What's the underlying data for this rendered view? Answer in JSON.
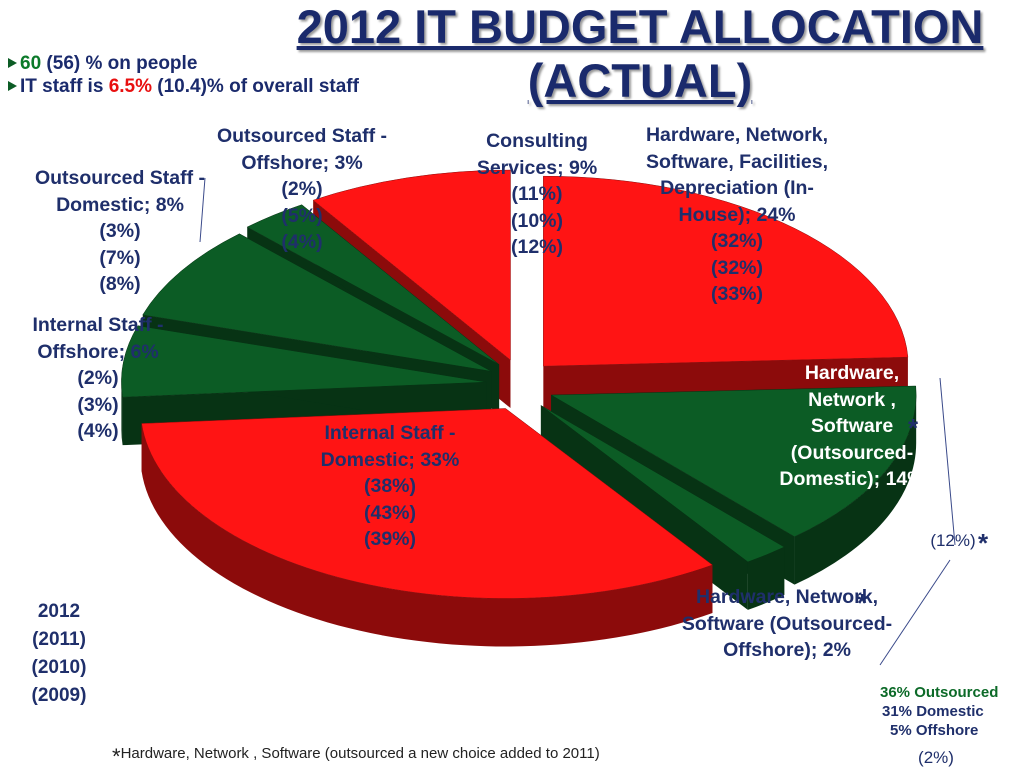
{
  "chart_data": {
    "type": "pie",
    "title": "2012 IT BUDGET ALLOCATION (ACTUAL)",
    "colors": [
      "#ff1414",
      "#ff1414",
      "#0c5c25",
      "#0c5c25",
      "#ff1414",
      "#0c5c25",
      "#0c5c25",
      "#0c5c25"
    ],
    "series": [
      {
        "name": "2012",
        "values": [
          9,
          24,
          14,
          2,
          33,
          6,
          8,
          3
        ],
        "value_labels": [
          "Consulting Services; 9%",
          "Hardware, Network, Software, Facilities, Depreciation (In-House); 24%",
          "Hardware, Network , Software (Outsourced-Domestic); 14%",
          "Hardware, Network, Software (Outsourced-Offshore); 2%",
          "Internal Staff - Domestic; 33%",
          "Internal Staff - Offshore; 6%",
          "Outsourced Staff - Domestic; 8%",
          "Outsourced Staff - Offshore; 3%"
        ]
      },
      {
        "name": "(2011)",
        "values": [
          11,
          32,
          12,
          2,
          38,
          2,
          3,
          2
        ],
        "value_labels": [
          "(11%)",
          "(32%)",
          "(12%)",
          "(2%)",
          "(38%)",
          "(2%)",
          "(3%)",
          "(2%)"
        ]
      },
      {
        "name": "(2010)",
        "values": [
          10,
          32,
          null,
          null,
          43,
          3,
          7,
          5
        ],
        "value_labels": [
          "(10%)",
          "(32%)",
          null,
          null,
          "(43%)",
          "(3%)",
          "(7%)",
          "(5%)"
        ]
      },
      {
        "name": "(2009)",
        "values": [
          12,
          33,
          null,
          null,
          39,
          4,
          8,
          4
        ],
        "value_labels": [
          "(12%)",
          "(33%)",
          null,
          null,
          "(39%)",
          "(4%)",
          "(8%)",
          "(4%)"
        ]
      }
    ],
    "notes": [
      {
        "highlight": "60",
        "text": " (56) % on people"
      },
      {
        "text": "IT staff is ",
        "highlight": "6.5%",
        "rest": " (10.4)% of overall staff"
      }
    ],
    "footnote_marker": "*",
    "footnote": "Hardware, Network , Software (outsourced a new choice added to 2011)",
    "summary": [
      "36% Outsourced",
      "31% Domestic",
      "5% Offshore"
    ]
  }
}
